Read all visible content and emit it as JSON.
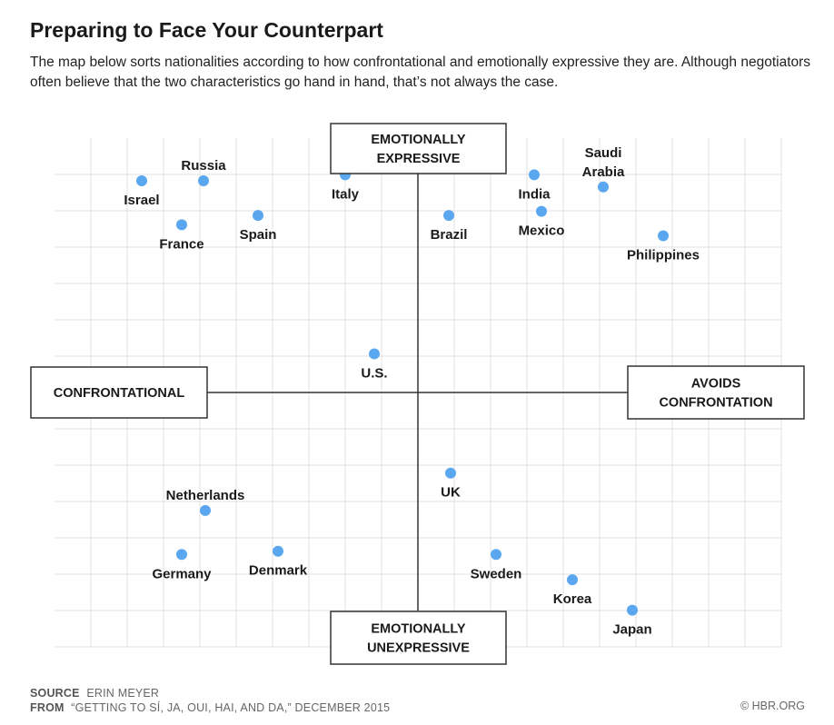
{
  "header": {
    "title": "Preparing to Face Your Counterpart",
    "subtitle": "The map below sorts nationalities according to how confrontational and emotionally expressive they are. Although negotiators often believe that the two characteristics go hand in hand, that’s not always the case."
  },
  "chart_data": {
    "type": "scatter",
    "axes": {
      "x_left_label": "CONFRONTATIONAL",
      "x_right_label": [
        "AVOIDS",
        "CONFRONTATION"
      ],
      "y_top_label": [
        "EMOTIONALLY",
        "EXPRESSIVE"
      ],
      "y_bottom_label": [
        "EMOTIONALLY",
        "UNEXPRESSIVE"
      ],
      "xlim": [
        -10,
        10
      ],
      "ylim": [
        -6.25,
        6.25
      ],
      "grid": true
    },
    "point_color": "#5aa7f0",
    "points": [
      {
        "label": "Israel",
        "x": -7.6,
        "y": 5.2,
        "label_pos": "below"
      },
      {
        "label": "Russia",
        "x": -5.9,
        "y": 5.2,
        "label_pos": "above"
      },
      {
        "label": "France",
        "x": -6.5,
        "y": 4.12,
        "label_pos": "below"
      },
      {
        "label": "Spain",
        "x": -4.4,
        "y": 4.35,
        "label_pos": "below"
      },
      {
        "label": "Italy",
        "x": -2.0,
        "y": 5.35,
        "label_pos": "below"
      },
      {
        "label": "Brazil",
        "x": 0.85,
        "y": 4.35,
        "label_pos": "below"
      },
      {
        "label": "India",
        "x": 3.2,
        "y": 5.35,
        "label_pos": "below"
      },
      {
        "label": "Mexico",
        "x": 3.4,
        "y": 4.45,
        "label_pos": "below"
      },
      {
        "label": "Saudi Arabia",
        "x": 5.1,
        "y": 5.05,
        "label_pos": "above"
      },
      {
        "label": "Philippines",
        "x": 6.75,
        "y": 3.85,
        "label_pos": "below"
      },
      {
        "label": "U.S.",
        "x": -1.2,
        "y": 0.95,
        "label_pos": "below"
      },
      {
        "label": "UK",
        "x": 0.9,
        "y": -1.98,
        "label_pos": "below"
      },
      {
        "label": "Netherlands",
        "x": -5.85,
        "y": -2.9,
        "label_pos": "above"
      },
      {
        "label": "Germany",
        "x": -6.5,
        "y": -3.98,
        "label_pos": "below"
      },
      {
        "label": "Denmark",
        "x": -3.85,
        "y": -3.9,
        "label_pos": "below"
      },
      {
        "label": "Sweden",
        "x": 2.15,
        "y": -3.98,
        "label_pos": "below"
      },
      {
        "label": "Korea",
        "x": 4.25,
        "y": -4.6,
        "label_pos": "below"
      },
      {
        "label": "Japan",
        "x": 5.9,
        "y": -5.35,
        "label_pos": "below"
      }
    ]
  },
  "footer": {
    "source_label": "SOURCE",
    "source_text": "ERIN MEYER",
    "from_label": "FROM",
    "from_text": "“GETTING TO SÍ, JA, OUI, HAI, AND DA,” DECEMBER 2015",
    "credit": "© HBR.ORG"
  }
}
